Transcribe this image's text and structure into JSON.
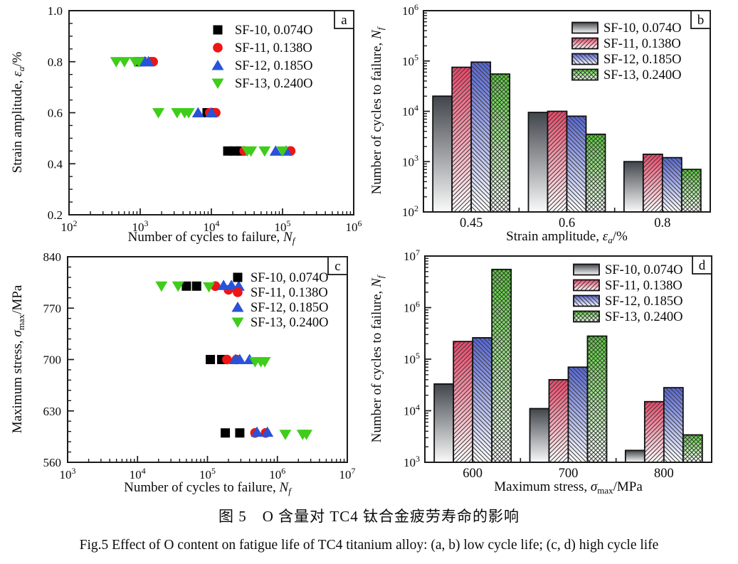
{
  "figure": {
    "caption_zh": "图 5　O 含量对 TC4 钛合金疲劳寿命的影响",
    "caption_en": "Fig.5   Effect of O content on fatigue life of TC4 titanium alloy: (a, b) low cycle life; (c, d) high cycle life"
  },
  "style": {
    "hatch_color": "#3a3a3a",
    "outline_color": "#111111",
    "frame_color": "#1a1a1a"
  },
  "chart_data": [
    {
      "panel": "a",
      "type": "scatter",
      "x": {
        "scale": "log",
        "min_exp": 2,
        "max_exp": 6,
        "label": "Number of cycles to failure, *N*_f_"
      },
      "y": {
        "scale": "linear",
        "min": 0.2,
        "max": 1.0,
        "major_ticks": [
          0.2,
          0.4,
          0.6,
          0.8,
          1.0
        ],
        "minor_step": 0.05,
        "decimals": 1,
        "label": "Strain amplitude, *ε*_a_/%"
      },
      "legend_position": "top-right",
      "series": [
        {
          "name": "SF-10, 0.074O",
          "marker": "square",
          "color": "#000000",
          "points": [
            [
              950,
              0.8
            ],
            [
              1050,
              0.8
            ],
            [
              8700,
              0.6
            ],
            [
              9800,
              0.6
            ],
            [
              17000,
              0.45
            ],
            [
              21000,
              0.45
            ],
            [
              26000,
              0.45
            ]
          ]
        },
        {
          "name": "SF-11, 0.138O",
          "marker": "circle",
          "color": "#ed1515",
          "points": [
            [
              1400,
              0.8
            ],
            [
              1520,
              0.8
            ],
            [
              9500,
              0.6
            ],
            [
              11500,
              0.6
            ],
            [
              29000,
              0.45
            ],
            [
              130000,
              0.45
            ]
          ]
        },
        {
          "name": "SF-12, 0.185O",
          "marker": "triangle-up",
          "color": "#2a52d8",
          "points": [
            [
              1150,
              0.8
            ],
            [
              1300,
              0.8
            ],
            [
              6500,
              0.6
            ],
            [
              10000,
              0.6
            ],
            [
              80000,
              0.45
            ],
            [
              112000,
              0.45
            ]
          ]
        },
        {
          "name": "SF-13, 0.240O",
          "marker": "triangle-down",
          "color": "#3fcc1a",
          "points": [
            [
              460,
              0.8
            ],
            [
              600,
              0.8
            ],
            [
              850,
              0.8
            ],
            [
              950,
              0.8
            ],
            [
              1800,
              0.6
            ],
            [
              3300,
              0.6
            ],
            [
              4200,
              0.6
            ],
            [
              4800,
              0.6
            ],
            [
              32000,
              0.45
            ],
            [
              36000,
              0.45
            ],
            [
              56000,
              0.45
            ],
            [
              100000,
              0.45
            ]
          ]
        }
      ]
    },
    {
      "panel": "b",
      "type": "bar",
      "x": {
        "categories": [
          "0.45",
          "0.6",
          "0.8"
        ],
        "label": "Strain amplitude, *ε*_a_/%"
      },
      "y": {
        "scale": "log",
        "min_exp": 2,
        "max_exp": 6,
        "label": "Number of cycles to failure, *N*_f_"
      },
      "legend_position": "top-right",
      "series": [
        {
          "name": "SF-10, 0.074O",
          "top_color": "#41464c",
          "bottom_color": "#fafafa",
          "hatch": "none",
          "values": [
            20000,
            9500,
            1000
          ]
        },
        {
          "name": "SF-11, 0.138O",
          "top_color": "#ea4668",
          "bottom_color": "#ffffff",
          "hatch": "/",
          "values": [
            75000,
            10000,
            1400
          ]
        },
        {
          "name": "SF-12, 0.185O",
          "top_color": "#5565d2",
          "bottom_color": "#ffffff",
          "hatch": "\\",
          "values": [
            95000,
            8000,
            1200
          ]
        },
        {
          "name": "SF-13, 0.240O",
          "top_color": "#55d133",
          "bottom_color": "#ffffff",
          "hatch": "x",
          "values": [
            55000,
            3500,
            700
          ]
        }
      ]
    },
    {
      "panel": "c",
      "type": "scatter",
      "x": {
        "scale": "log",
        "min_exp": 3,
        "max_exp": 7,
        "label": "Number of cycles to failure, *N*_f_"
      },
      "y": {
        "scale": "linear",
        "min": 560,
        "max": 840,
        "major_ticks": [
          560,
          630,
          700,
          770,
          840
        ],
        "minor_step": 14,
        "decimals": 0,
        "label": "Maximum stress, *σ*_max_/MPa"
      },
      "legend_position": "top-right",
      "series": [
        {
          "name": "SF-10, 0.074O",
          "marker": "square",
          "color": "#000000",
          "points": [
            [
              50000,
              800
            ],
            [
              70000,
              800
            ],
            [
              110000,
              700
            ],
            [
              160000,
              700
            ],
            [
              180000,
              600
            ],
            [
              290000,
              600
            ]
          ]
        },
        {
          "name": "SF-11, 0.138O",
          "marker": "circle",
          "color": "#ed1515",
          "points": [
            [
              130000,
              800
            ],
            [
              200000,
              795
            ],
            [
              190000,
              700
            ],
            [
              260000,
              700
            ],
            [
              480000,
              600
            ],
            [
              680000,
              600
            ]
          ]
        },
        {
          "name": "SF-12, 0.185O",
          "marker": "triangle-up",
          "color": "#2a52d8",
          "points": [
            [
              170000,
              801
            ],
            [
              220000,
              801
            ],
            [
              280000,
              800
            ],
            [
              250000,
              700
            ],
            [
              290000,
              700
            ],
            [
              400000,
              700
            ],
            [
              510000,
              601
            ],
            [
              720000,
              601
            ]
          ]
        },
        {
          "name": "SF-13, 0.240O",
          "marker": "triangle-down",
          "color": "#3fcc1a",
          "points": [
            [
              22000,
              800
            ],
            [
              38000,
              800
            ],
            [
              105000,
              799
            ],
            [
              480000,
              697
            ],
            [
              580000,
              697
            ],
            [
              660000,
              697
            ],
            [
              1300000,
              598
            ],
            [
              2300000,
              598
            ],
            [
              2600000,
              598
            ]
          ]
        }
      ]
    },
    {
      "panel": "d",
      "type": "bar",
      "x": {
        "categories": [
          "600",
          "700",
          "800"
        ],
        "label": "Maximum stress, *σ*_max_/MPa"
      },
      "y": {
        "scale": "log",
        "min_exp": 3,
        "max_exp": 7,
        "label": "Number of cycles to failure, *N*_f_"
      },
      "legend_position": "top-right",
      "series": [
        {
          "name": "SF-10, 0.074O",
          "top_color": "#41464c",
          "bottom_color": "#fafafa",
          "hatch": "none",
          "values": [
            33000,
            11000,
            1700
          ]
        },
        {
          "name": "SF-11, 0.138O",
          "top_color": "#ea4668",
          "bottom_color": "#ffffff",
          "hatch": "/",
          "values": [
            220000,
            40000,
            15000
          ]
        },
        {
          "name": "SF-12, 0.185O",
          "top_color": "#5565d2",
          "bottom_color": "#ffffff",
          "hatch": "\\",
          "values": [
            260000,
            70000,
            28000
          ]
        },
        {
          "name": "SF-13, 0.240O",
          "top_color": "#55d133",
          "bottom_color": "#ffffff",
          "hatch": "x",
          "values": [
            5500000,
            280000,
            3400
          ]
        }
      ]
    }
  ]
}
